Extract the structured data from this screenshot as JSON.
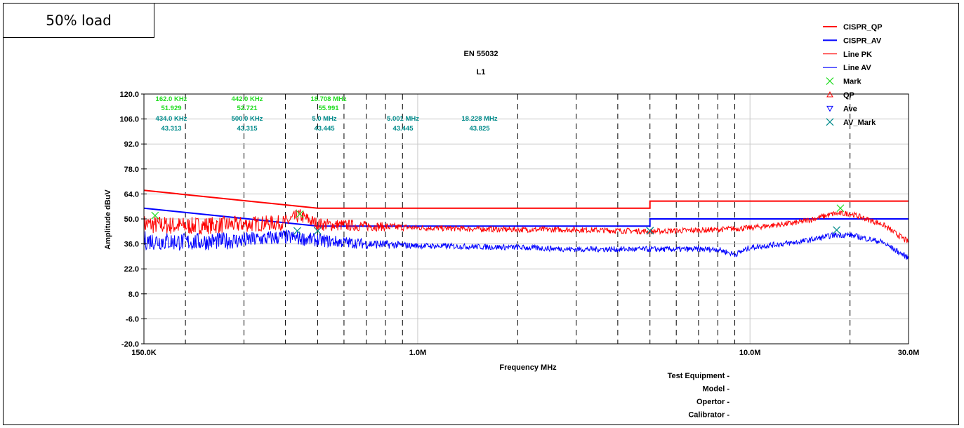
{
  "load_label": "50% load",
  "chart_data": {
    "type": "line",
    "title": "EN 55032",
    "subtitle": "L1",
    "xlabel": "Frequency MHz",
    "ylabel": "Amplitude dBuV",
    "x_scale": "log",
    "xlim": [
      0.15,
      30
    ],
    "ylim": [
      -20,
      120
    ],
    "x_ticks": [
      {
        "value": 0.15,
        "label": "150.0K"
      },
      {
        "value": 1,
        "label": "1.0M"
      },
      {
        "value": 10,
        "label": "10.0M"
      },
      {
        "value": 30,
        "label": "30.0M"
      }
    ],
    "y_ticks": [
      {
        "value": 120,
        "label": "120.0"
      },
      {
        "value": 106,
        "label": "106.0"
      },
      {
        "value": 92,
        "label": "92.0"
      },
      {
        "value": 78,
        "label": "78.0"
      },
      {
        "value": 64,
        "label": "64.0"
      },
      {
        "value": 50,
        "label": "50.0"
      },
      {
        "value": 36,
        "label": "36.0"
      },
      {
        "value": 22,
        "label": "22.0"
      },
      {
        "value": 8,
        "label": "8.0"
      },
      {
        "value": -6,
        "label": "-6.0"
      },
      {
        "value": -20,
        "label": "-20.0"
      }
    ],
    "grid": true,
    "legend_position": "top-right",
    "series": [
      {
        "name": "CISPR_QP",
        "color": "#ff0000",
        "style": "limit-line",
        "x": [
          0.15,
          0.5,
          0.5,
          5,
          5,
          30
        ],
        "y": [
          66,
          56,
          56,
          56,
          60,
          60
        ]
      },
      {
        "name": "CISPR_AV",
        "color": "#0000ff",
        "style": "limit-line",
        "x": [
          0.15,
          0.5,
          0.5,
          5,
          5,
          30
        ],
        "y": [
          56,
          46,
          46,
          46,
          50,
          50
        ]
      },
      {
        "name": "Line PK",
        "color": "#ff0000",
        "style": "trace",
        "x": [
          0.15,
          0.2,
          0.3,
          0.4,
          0.44,
          0.5,
          0.7,
          1,
          2,
          3,
          5,
          8,
          10,
          14,
          18,
          20,
          25,
          30
        ],
        "y": [
          47,
          46,
          47,
          48,
          52,
          47,
          46,
          45,
          44,
          44,
          43,
          44,
          45,
          48,
          53,
          53,
          47,
          37
        ]
      },
      {
        "name": "Line AV",
        "color": "#0000ff",
        "style": "trace",
        "x": [
          0.15,
          0.2,
          0.3,
          0.4,
          0.5,
          0.7,
          1,
          2,
          3,
          5,
          8,
          9,
          10,
          14,
          18,
          20,
          25,
          30
        ],
        "y": [
          38,
          37,
          38,
          40,
          38,
          36,
          35,
          34,
          33,
          33,
          33,
          30,
          34,
          37,
          41,
          41,
          37,
          28
        ]
      }
    ],
    "marks": [
      {
        "freq_label": "162.0 KHz",
        "value": "51.929",
        "x": 0.162,
        "y": 51.9,
        "type": "Mark"
      },
      {
        "freq_label": "442.0 KHz",
        "value": "52.721",
        "x": 0.442,
        "y": 52.7,
        "type": "Mark"
      },
      {
        "freq_label": "18.708 MHz",
        "value": "55.991",
        "x": 18.708,
        "y": 56.0,
        "type": "Mark"
      },
      {
        "freq_label": "434.0 KHz",
        "value": "43.313",
        "x": 0.434,
        "y": 43.3,
        "type": "AV_Mark"
      },
      {
        "freq_label": "500.0 KHz",
        "value": "43.315",
        "x": 0.5,
        "y": 43.3,
        "type": "AV_Mark"
      },
      {
        "freq_label": "5.0 MHz",
        "value": "43.445",
        "x": 5.0,
        "y": 43.4,
        "type": "AV_Mark"
      },
      {
        "freq_label": "5.001 MHz",
        "value": "43.445",
        "x": 5.001,
        "y": 43.4,
        "type": "AV_Mark"
      },
      {
        "freq_label": "18.228 MHz",
        "value": "43.825",
        "x": 18.228,
        "y": 43.8,
        "type": "AV_Mark"
      }
    ],
    "mark_color": "#22dd22",
    "av_mark_color": "#008b8b",
    "legend": [
      {
        "label": "CISPR_QP",
        "symbol": "line",
        "color": "#ff0000"
      },
      {
        "label": "CISPR_AV",
        "symbol": "line",
        "color": "#0000ff"
      },
      {
        "label": "Line PK",
        "symbol": "thin-line",
        "color": "#ff0000"
      },
      {
        "label": "Line AV",
        "symbol": "thin-line",
        "color": "#0000ff"
      },
      {
        "label": "Mark",
        "symbol": "x",
        "color": "#22dd22"
      },
      {
        "label": "QP",
        "symbol": "triangle-up",
        "color": "#ff0000"
      },
      {
        "label": "Ave",
        "symbol": "triangle-down",
        "color": "#0000ff"
      },
      {
        "label": "AV_Mark",
        "symbol": "x",
        "color": "#008b8b"
      }
    ],
    "info": [
      "Test Equipment -",
      "Model -",
      "Opertor -",
      "Calibrator -"
    ]
  }
}
